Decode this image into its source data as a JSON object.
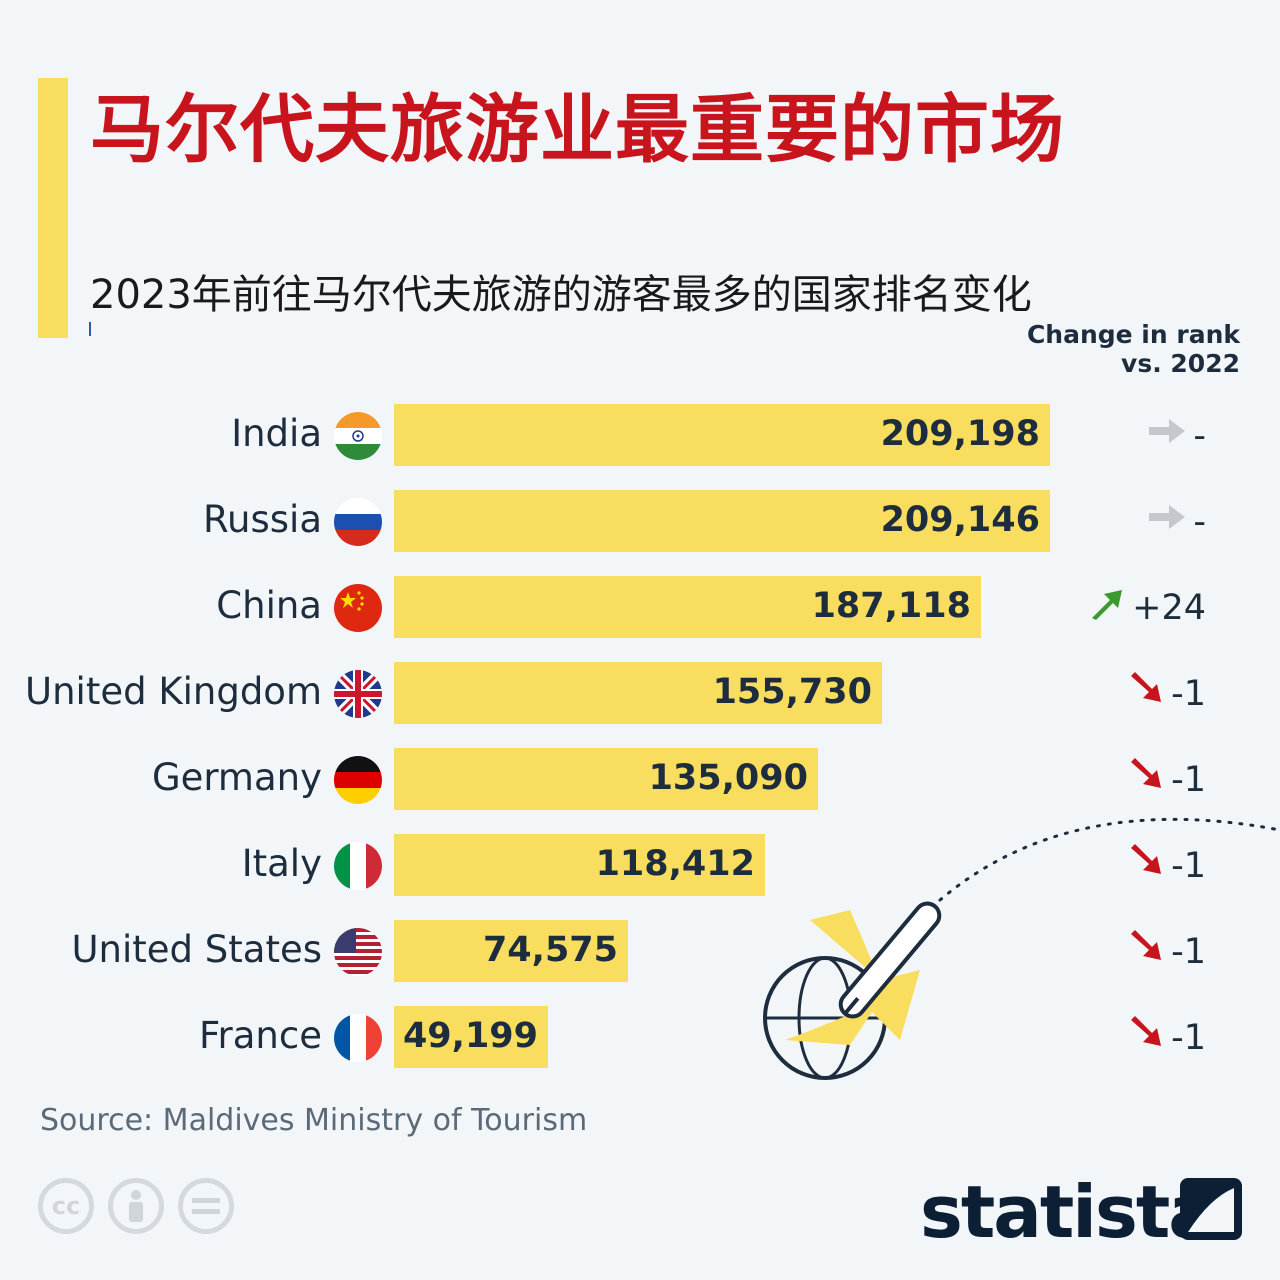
{
  "title": "马尔代夫旅游业最重要的市场",
  "subtitle": "2023年前往马尔代夫旅游的游客最多的国家排名变化",
  "change_header_line1": "Change in rank",
  "change_header_line2": "vs. 2022",
  "source": "Source: Maldives Ministry of Tourism",
  "brand": "statista",
  "colors": {
    "bar": "#f8dd5e",
    "title": "#c8141d",
    "up": "#3a9a2c",
    "down": "#c8141d",
    "neutral": "#c4c8cc"
  },
  "icons": [
    "creative-commons-icon",
    "attribution-icon",
    "no-derivatives-icon",
    "airplane-globe-illustration"
  ],
  "chart_data": {
    "type": "bar",
    "orientation": "horizontal",
    "title": "马尔代夫旅游业最重要的市场",
    "subtitle": "2023年前往马尔代夫旅游的游客最多的国家排名变化",
    "categories": [
      "India",
      "Russia",
      "China",
      "United Kingdom",
      "Germany",
      "Italy",
      "United States",
      "France"
    ],
    "values": [
      209198,
      209146,
      187118,
      155730,
      135090,
      118412,
      74575,
      49199
    ],
    "value_labels": [
      "209,198",
      "209,146",
      "187,118",
      "155,730",
      "135,090",
      "118,412",
      "74,575",
      "49,199"
    ],
    "rank_change": [
      "-",
      "-",
      "+24",
      "-1",
      "-1",
      "-1",
      "-1",
      "-1"
    ],
    "rank_direction": [
      "same",
      "same",
      "up",
      "down",
      "down",
      "down",
      "down",
      "down"
    ],
    "flags": [
      "india-flag-icon",
      "russia-flag-icon",
      "china-flag-icon",
      "uk-flag-icon",
      "germany-flag-icon",
      "italy-flag-icon",
      "usa-flag-icon",
      "france-flag-icon"
    ],
    "xlim": [
      0,
      209198
    ],
    "grid": false,
    "legend": "none"
  }
}
